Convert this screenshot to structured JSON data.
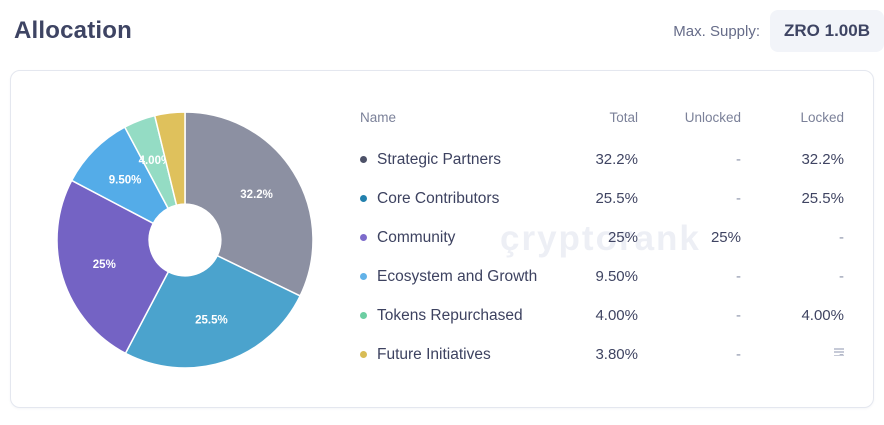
{
  "header": {
    "title": "Allocation",
    "max_supply_label": "Max. Supply:",
    "max_supply_value": "ZRO 1.00B"
  },
  "watermark": "çryptorank",
  "table": {
    "columns": [
      "Name",
      "Total",
      "Unlocked",
      "Locked"
    ],
    "rows": [
      {
        "name": "Strategic Partners",
        "bullet_color": "#4D5168",
        "total": "32.2%",
        "unlocked": "-",
        "locked": "32.2%"
      },
      {
        "name": "Core Contributors",
        "bullet_color": "#2280AD",
        "total": "25.5%",
        "unlocked": "-",
        "locked": "25.5%"
      },
      {
        "name": "Community",
        "bullet_color": "#7D6BCB",
        "total": "25%",
        "unlocked": "25%",
        "locked": "-"
      },
      {
        "name": "Ecosystem and Growth",
        "bullet_color": "#62B2E8",
        "total": "9.50%",
        "unlocked": "-",
        "locked": "-"
      },
      {
        "name": "Tokens Repurchased",
        "bullet_color": "#6CCEA2",
        "total": "4.00%",
        "unlocked": "-",
        "locked": "4.00%"
      },
      {
        "name": "Future Initiatives",
        "bullet_color": "#D8BC55",
        "total": "3.80%",
        "unlocked": "-",
        "locked": "-"
      }
    ]
  },
  "chart_data": {
    "type": "pie",
    "donut": true,
    "title": "",
    "categories": [
      "Strategic Partners",
      "Core Contributors",
      "Community",
      "Ecosystem and Growth",
      "Tokens Repurchased",
      "Future Initiatives"
    ],
    "values": [
      32.2,
      25.5,
      25,
      9.5,
      4.0,
      3.8
    ],
    "slice_labels": [
      "32.2%",
      "25.5%",
      "25%",
      "9.50%",
      "4.00%",
      ""
    ],
    "colors": [
      "#8C90A2",
      "#4BA3CD",
      "#7463C4",
      "#54ACE8",
      "#94DCC4",
      "#DFC15C"
    ],
    "start_angle_deg": 0,
    "inner_radius_ratio": 0.28,
    "label_radius_ratio": 0.66,
    "legend_position": "table-right"
  }
}
